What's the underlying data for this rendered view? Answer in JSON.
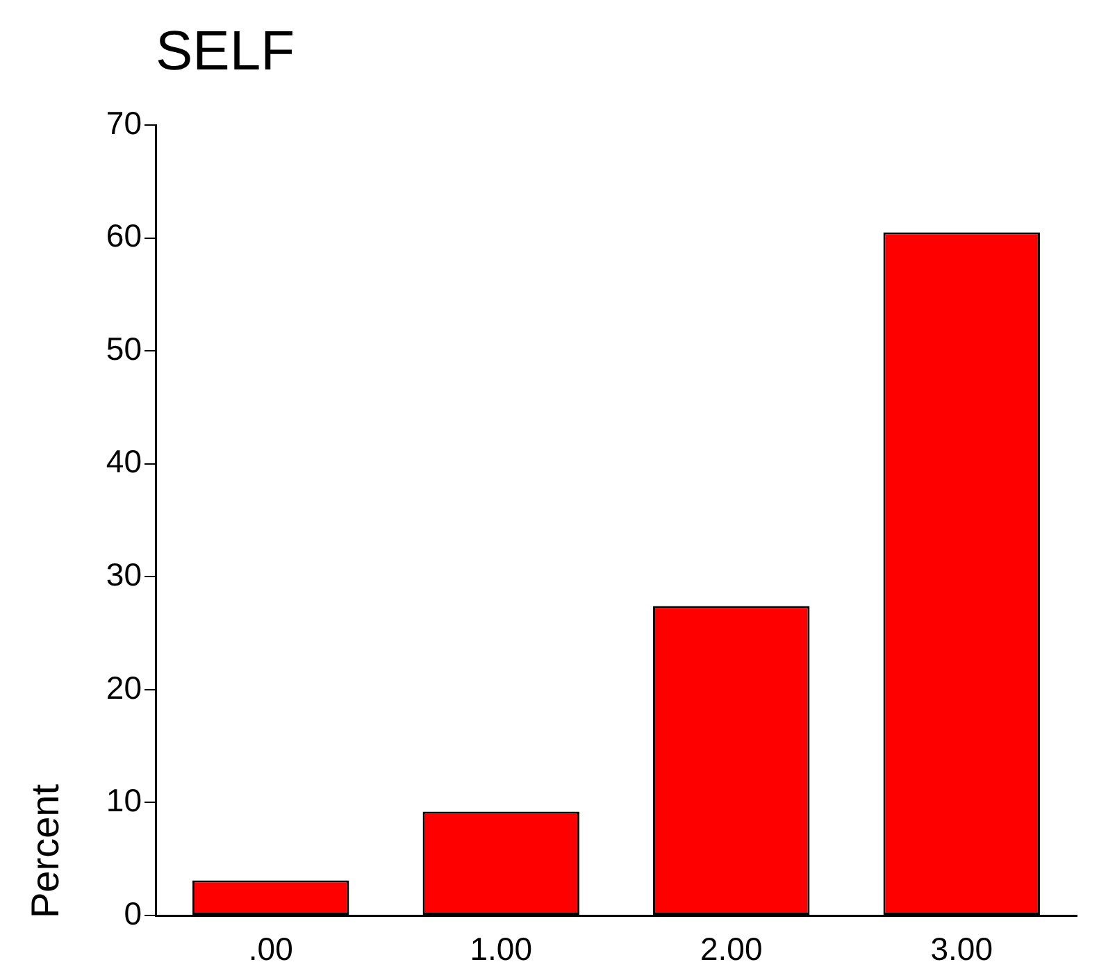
{
  "chart_data": {
    "type": "bar",
    "title": "SELF",
    "ylabel": "Percent",
    "categories": [
      ".00",
      "1.00",
      "2.00",
      "3.00"
    ],
    "values": [
      3.1,
      9.2,
      27.4,
      60.5
    ],
    "color": "#ff0000",
    "ylim": [
      0,
      70
    ],
    "yticks": [
      0,
      10,
      20,
      30,
      40,
      50,
      60,
      70
    ],
    "grid": false,
    "legend": false
  }
}
